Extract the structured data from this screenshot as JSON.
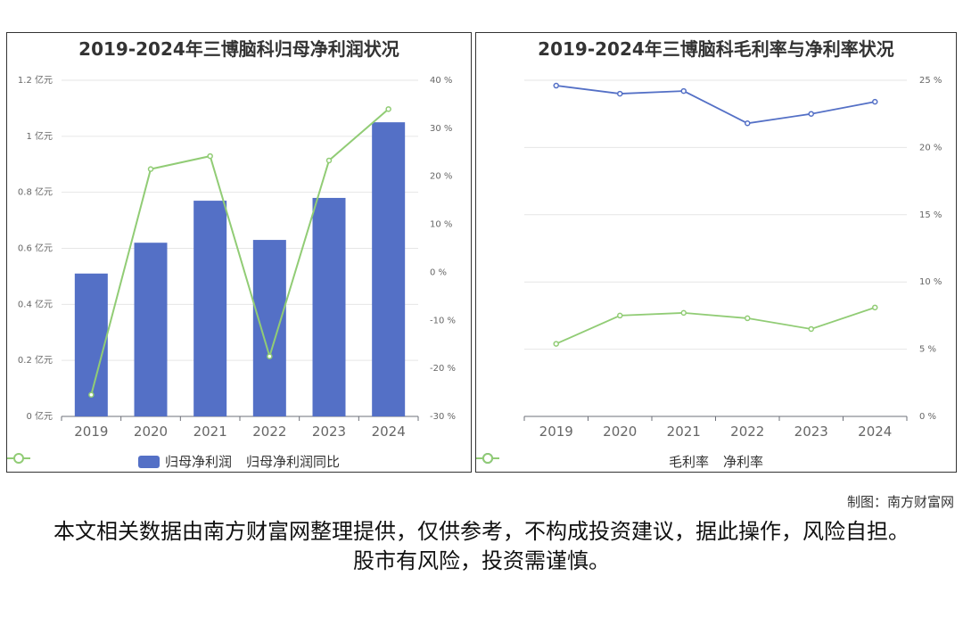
{
  "credit": "制图：南方财富网",
  "disclaimer": "本文相关数据由南方财富网整理提供，仅供参考，不构成投资建议，据此操作，风险自担。股市有风险，投资需谨慎。",
  "chart_data": [
    {
      "type": "bar",
      "title": "2019-2024年三博脑科归母净利润状况",
      "categories": [
        "2019",
        "2020",
        "2021",
        "2022",
        "2023",
        "2024"
      ],
      "series": [
        {
          "name": "归母净利润",
          "type": "bar",
          "axis": "left",
          "unit": "亿元",
          "color": "#5470c6",
          "values": [
            0.51,
            0.62,
            0.77,
            0.63,
            0.78,
            1.05
          ]
        },
        {
          "name": "归母净利润同比",
          "type": "line",
          "axis": "right",
          "unit": "%",
          "color": "#91cc75",
          "values": [
            -25.5,
            21.5,
            24.2,
            -17.5,
            23.3,
            34.0
          ]
        }
      ],
      "ylim_left": [
        0,
        1.2
      ],
      "yticks_left": [
        "0 亿元",
        "0.2 亿元",
        "0.4 亿元",
        "0.6 亿元",
        "0.8 亿元",
        "1 亿元",
        "1.2 亿元"
      ],
      "ylim_right": [
        -30,
        40
      ],
      "yticks_right": [
        "-30 %",
        "-20 %",
        "-10 %",
        "0 %",
        "10 %",
        "20 %",
        "30 %",
        "40 %"
      ],
      "grid": true,
      "legend": "bottom"
    },
    {
      "type": "line",
      "title": "2019-2024年三博脑科毛利率与净利率状况",
      "categories": [
        "2019",
        "2020",
        "2021",
        "2022",
        "2023",
        "2024"
      ],
      "series": [
        {
          "name": "毛利率",
          "unit": "%",
          "color": "#5470c6",
          "values": [
            24.6,
            24.0,
            24.2,
            21.8,
            22.5,
            23.4
          ]
        },
        {
          "name": "净利率",
          "unit": "%",
          "color": "#91cc75",
          "values": [
            5.4,
            7.5,
            7.7,
            7.3,
            6.5,
            8.1
          ]
        }
      ],
      "ylim": [
        0,
        25
      ],
      "yticks": [
        "0 %",
        "5 %",
        "10 %",
        "15 %",
        "20 %",
        "25 %"
      ],
      "grid": true,
      "legend": "bottom"
    }
  ]
}
